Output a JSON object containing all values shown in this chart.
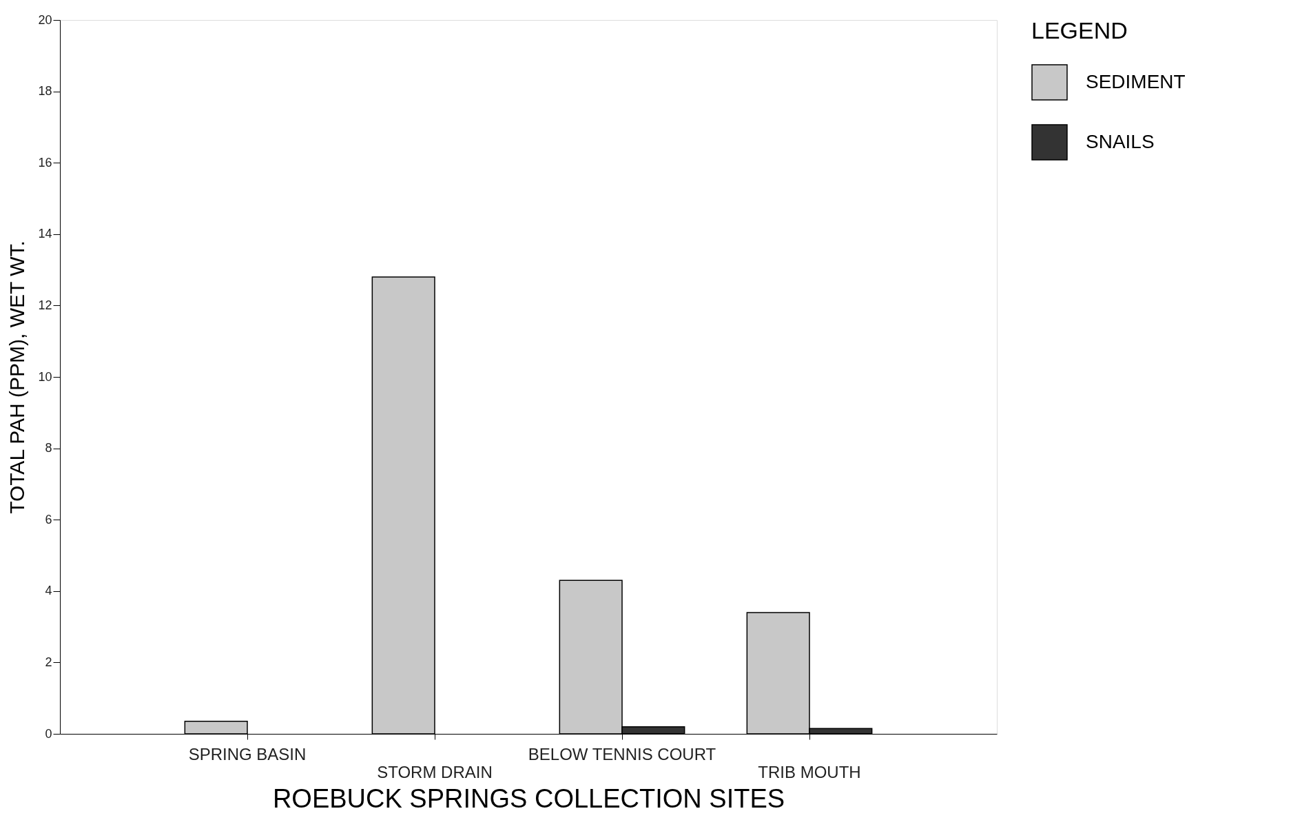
{
  "chart_data": {
    "type": "bar",
    "xlabel": "ROEBUCK SPRINGS COLLECTION SITES",
    "ylabel": "TOTAL PAH (PPM), WET WT.",
    "legend_title": "LEGEND",
    "categories": [
      "SPRING BASIN",
      "STORM DRAIN",
      "BELOW TENNIS COURT",
      "TRIB MOUTH"
    ],
    "series": [
      {
        "name": "SEDIMENT",
        "color": "#c8c8c8",
        "values": [
          0.35,
          12.8,
          4.3,
          3.4
        ]
      },
      {
        "name": "SNAILS",
        "color": "#333333",
        "values": [
          null,
          null,
          0.2,
          0.15
        ]
      }
    ],
    "ylim": [
      0,
      20
    ],
    "yticks": [
      0,
      2,
      4,
      6,
      8,
      10,
      12,
      14,
      16,
      18,
      20
    ],
    "grid": false,
    "legend": "top right"
  }
}
